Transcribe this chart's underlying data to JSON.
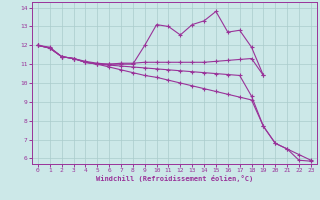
{
  "xlabel": "Windchill (Refroidissement éolien,°C)",
  "bg_color": "#cce8e8",
  "grid_color": "#aacccc",
  "line_color": "#993399",
  "xlim": [
    -0.5,
    23.5
  ],
  "ylim": [
    5.7,
    14.3
  ],
  "xticks": [
    0,
    1,
    2,
    3,
    4,
    5,
    6,
    7,
    8,
    9,
    10,
    11,
    12,
    13,
    14,
    15,
    16,
    17,
    18,
    19,
    20,
    21,
    22,
    23
  ],
  "yticks": [
    6,
    7,
    8,
    9,
    10,
    11,
    12,
    13,
    14
  ],
  "series": [
    {
      "x": [
        0,
        1,
        2,
        3,
        4,
        5,
        6,
        7,
        8,
        9,
        10,
        11,
        12,
        13,
        14,
        15,
        16,
        17,
        18,
        19
      ],
      "y": [
        12.0,
        11.85,
        11.4,
        11.3,
        11.1,
        11.0,
        11.0,
        11.0,
        11.0,
        12.0,
        13.1,
        13.0,
        12.55,
        13.1,
        13.3,
        13.8,
        12.7,
        12.8,
        11.9,
        10.4
      ]
    },
    {
      "x": [
        0,
        1,
        2,
        3,
        4,
        5,
        6,
        7,
        8,
        9,
        10,
        11,
        12,
        13,
        14,
        15,
        16,
        17,
        18,
        19
      ],
      "y": [
        12.0,
        11.9,
        11.4,
        11.3,
        11.15,
        11.05,
        11.0,
        11.05,
        11.05,
        11.1,
        11.1,
        11.1,
        11.1,
        11.1,
        11.1,
        11.15,
        11.2,
        11.25,
        11.3,
        10.4
      ]
    },
    {
      "x": [
        0,
        1,
        2,
        3,
        4,
        5,
        6,
        7,
        8,
        9,
        10,
        11,
        12,
        13,
        14,
        15,
        16,
        17,
        18,
        19,
        20,
        21,
        22,
        23
      ],
      "y": [
        12.0,
        11.85,
        11.4,
        11.3,
        11.1,
        11.0,
        10.85,
        10.7,
        10.55,
        10.4,
        10.3,
        10.15,
        10.0,
        9.85,
        9.7,
        9.55,
        9.4,
        9.25,
        9.1,
        7.7,
        6.8,
        6.5,
        6.2,
        5.9
      ]
    },
    {
      "x": [
        0,
        1,
        2,
        3,
        4,
        5,
        6,
        7,
        8,
        9,
        10,
        11,
        12,
        13,
        14,
        15,
        16,
        17,
        18,
        19,
        20,
        21,
        22,
        23
      ],
      "y": [
        12.0,
        11.85,
        11.4,
        11.3,
        11.1,
        11.0,
        10.95,
        10.9,
        10.85,
        10.8,
        10.75,
        10.7,
        10.65,
        10.6,
        10.55,
        10.5,
        10.45,
        10.4,
        9.3,
        7.7,
        6.8,
        6.5,
        5.9,
        5.85
      ]
    }
  ]
}
